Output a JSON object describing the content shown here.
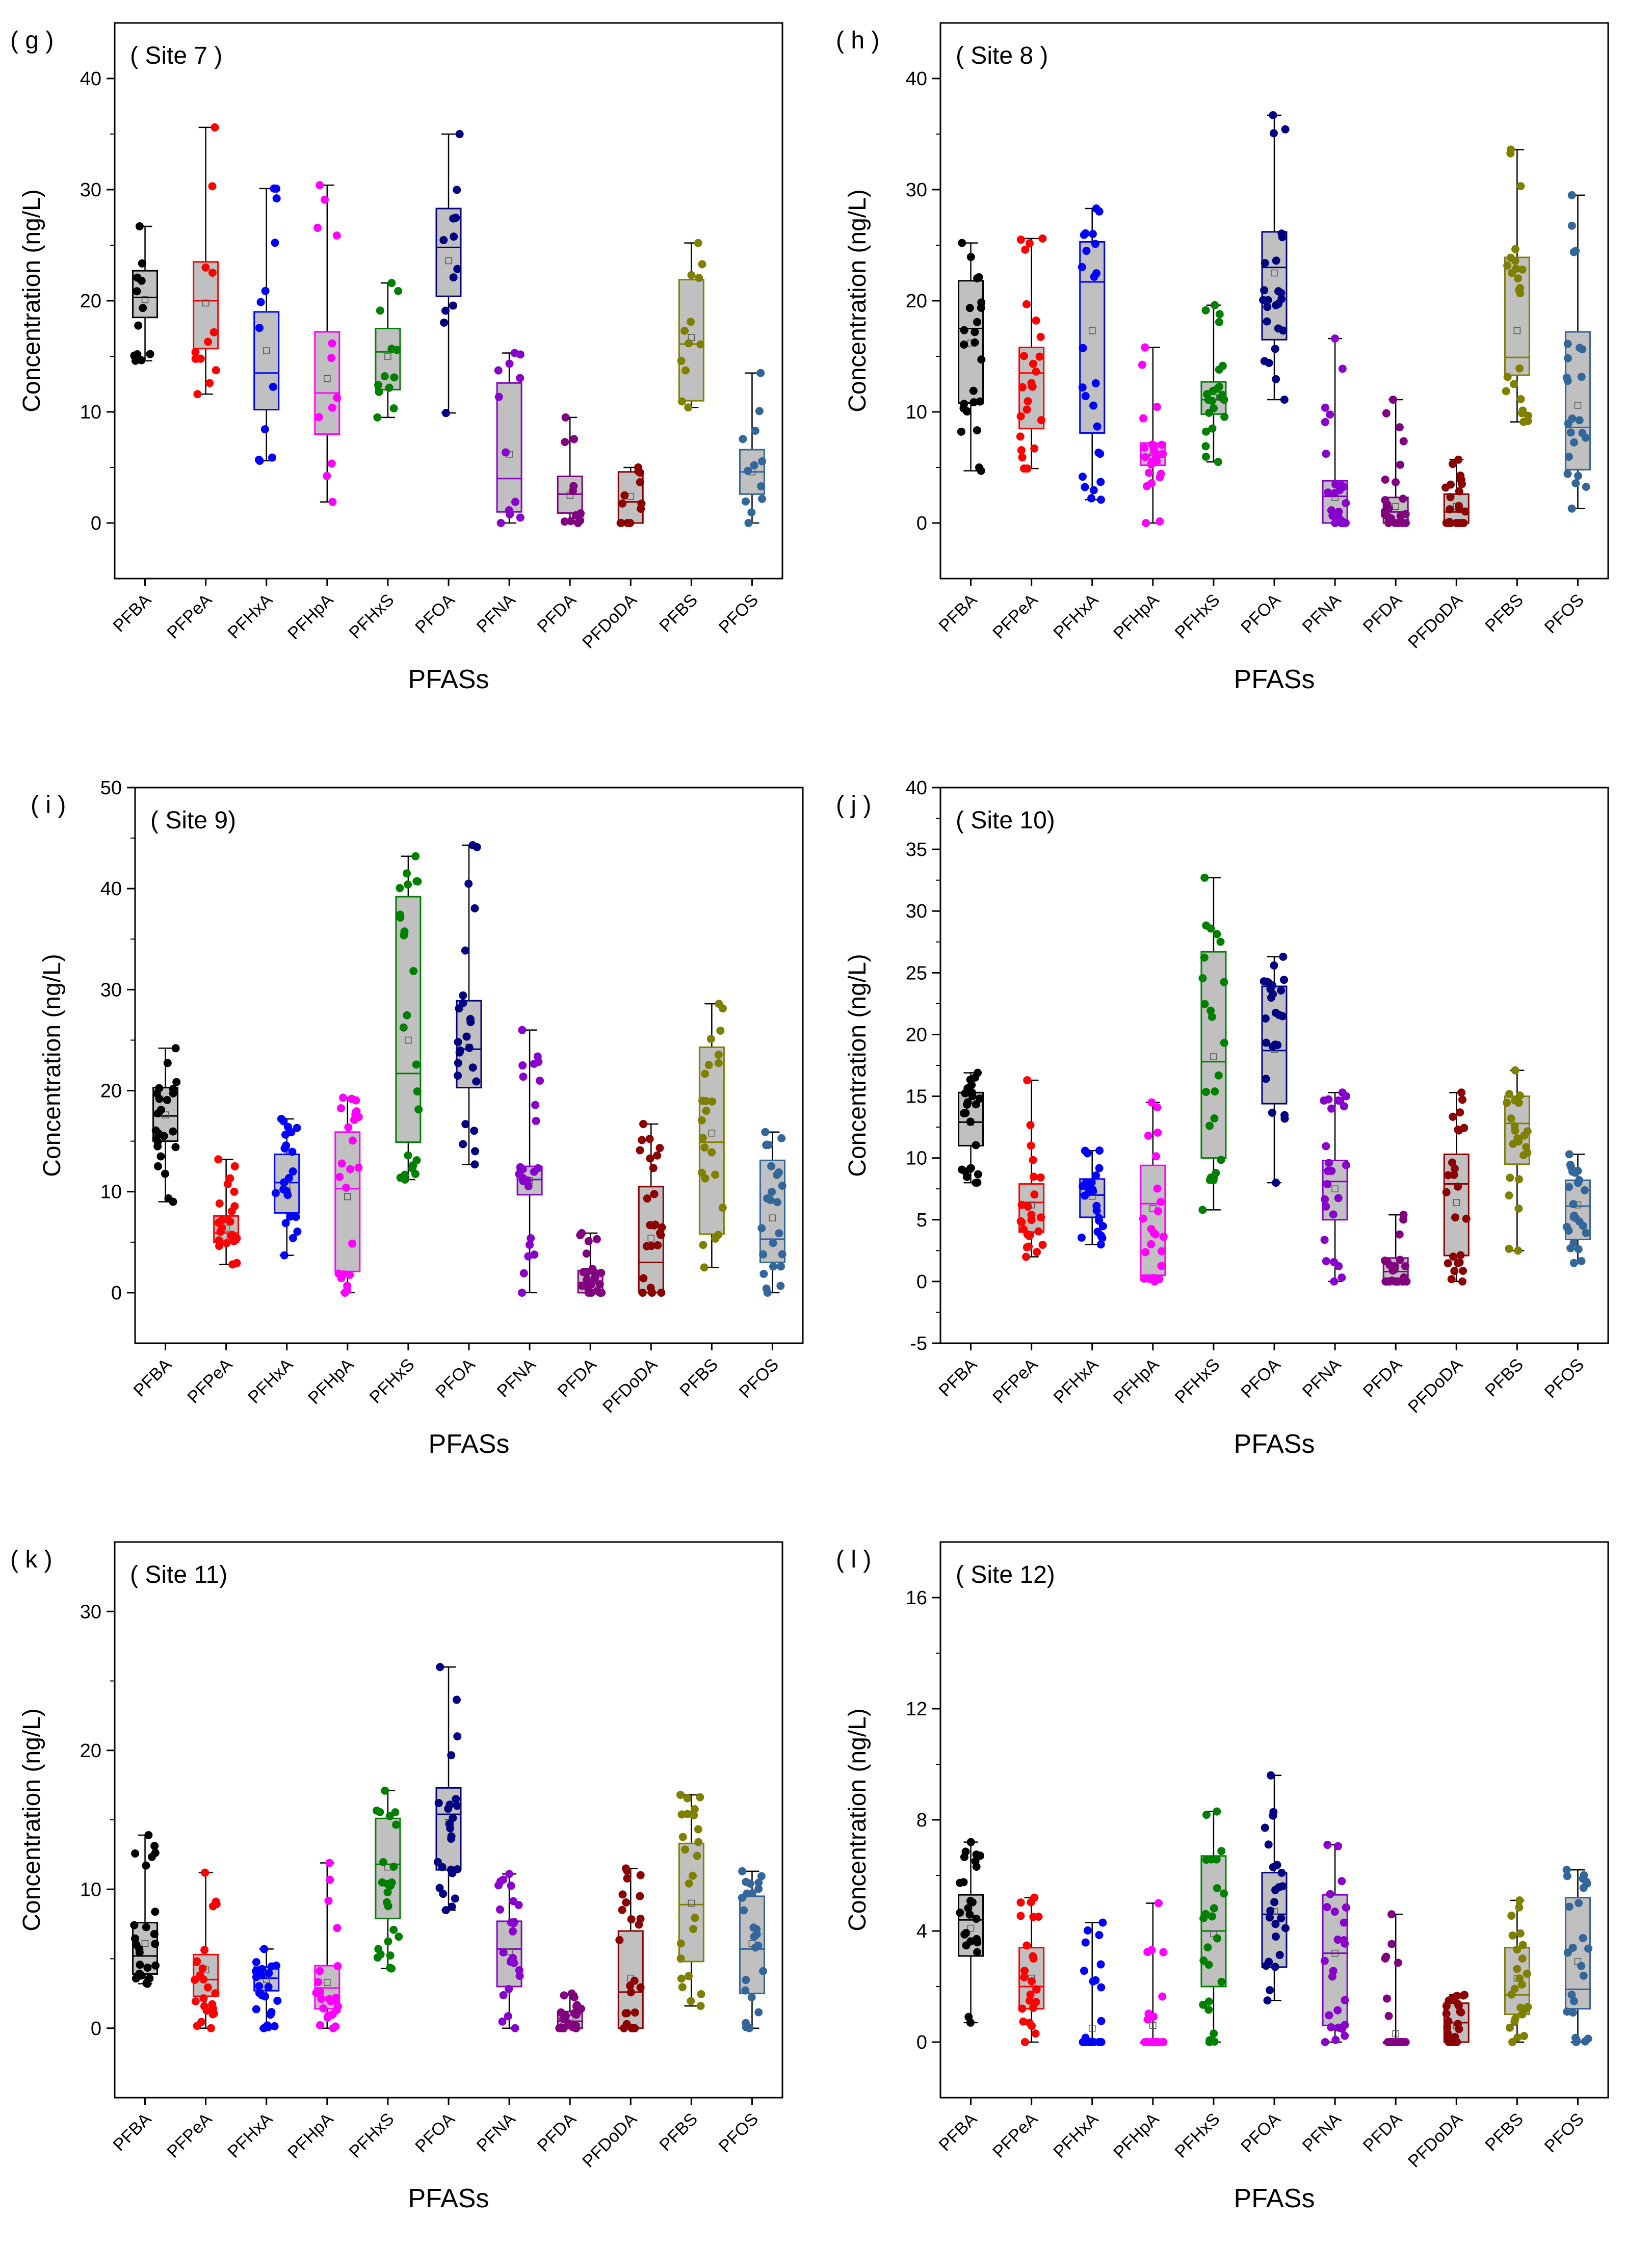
{
  "colors": {
    "PFBA": "#000000",
    "PFPeA": "#ff0000",
    "PFHxA": "#0000ff",
    "PFHpA": "#ff00ff",
    "PFHxS": "#008000",
    "PFOA": "#000080",
    "PFNA": "#8800cc",
    "PFDA": "#800080",
    "PFDoDA": "#8b0000",
    "PFBS": "#808000",
    "PFOS": "#336699",
    "box_fill": "#c0c0c0"
  },
  "chart_data": [
    {
      "type": "box",
      "panel_label": "( g )",
      "title": "( Site 7 )",
      "xlabel": "PFASs",
      "ylabel": "Concentration (ng/L)",
      "ylim": [
        -5,
        45
      ],
      "yticks": [
        0,
        10,
        20,
        30,
        40
      ],
      "yticklabels": [
        "0",
        "10",
        "20",
        "30",
        "40"
      ],
      "categories": [
        "PFBA",
        "PFPeA",
        "PFHxA",
        "PFHpA",
        "PFHxS",
        "PFOA",
        "PFNA",
        "PFDA",
        "PFDoDA",
        "PFBS",
        "PFOS"
      ],
      "boxes": [
        {
          "q1": 18.5,
          "median": 20.3,
          "q3": 22.7,
          "mean": 20.1,
          "wlo": 14.6,
          "whi": 26.7
        },
        {
          "q1": 15.7,
          "median": 20.0,
          "q3": 23.5,
          "mean": 19.8,
          "wlo": 11.6,
          "whi": 35.6
        },
        {
          "q1": 10.2,
          "median": 13.5,
          "q3": 19.0,
          "mean": 15.5,
          "wlo": 5.6,
          "whi": 30.1
        },
        {
          "q1": 8.0,
          "median": 11.7,
          "q3": 17.2,
          "mean": 13.0,
          "wlo": 1.9,
          "whi": 30.4
        },
        {
          "q1": 12.0,
          "median": 15.4,
          "q3": 17.5,
          "mean": 15.0,
          "wlo": 9.5,
          "whi": 21.6
        },
        {
          "q1": 20.4,
          "median": 24.8,
          "q3": 28.3,
          "mean": 23.6,
          "wlo": 9.9,
          "whi": 35.0
        },
        {
          "q1": 1.0,
          "median": 4.0,
          "q3": 12.6,
          "mean": 6.2,
          "wlo": 0.0,
          "whi": 15.3
        },
        {
          "q1": 0.9,
          "median": 2.6,
          "q3": 4.2,
          "mean": 2.5,
          "wlo": 0.0,
          "whi": 9.5
        },
        {
          "q1": 0.0,
          "median": 1.9,
          "q3": 4.6,
          "mean": 2.4,
          "wlo": 0.0,
          "whi": 5.0
        },
        {
          "q1": 11.0,
          "median": 16.1,
          "q3": 21.9,
          "mean": 16.7,
          "wlo": 10.4,
          "whi": 25.2
        },
        {
          "q1": 2.6,
          "median": 4.6,
          "q3": 6.6,
          "mean": 4.6,
          "wlo": 0.0,
          "whi": 13.5
        }
      ],
      "n_points": 12
    },
    {
      "type": "box",
      "panel_label": "( h )",
      "title": "( Site 8 )",
      "xlabel": "PFASs",
      "ylabel": "Concentration (ng/L)",
      "ylim": [
        -5,
        45
      ],
      "yticks": [
        0,
        10,
        20,
        30,
        40
      ],
      "yticklabels": [
        "0",
        "10",
        "20",
        "30",
        "40"
      ],
      "categories": [
        "PFBA",
        "PFPeA",
        "PFHxA",
        "PFHpA",
        "PFHxS",
        "PFOA",
        "PFNA",
        "PFDA",
        "PFDoDA",
        "PFBS",
        "PFOS"
      ],
      "boxes": [
        {
          "q1": 10.8,
          "median": 17.5,
          "q3": 21.8,
          "mean": 16.2,
          "wlo": 4.7,
          "whi": 25.2
        },
        {
          "q1": 8.5,
          "median": 13.5,
          "q3": 15.8,
          "mean": 12.4,
          "wlo": 4.9,
          "whi": 25.6
        },
        {
          "q1": 8.1,
          "median": 21.7,
          "q3": 25.3,
          "mean": 17.3,
          "wlo": 2.1,
          "whi": 28.3
        },
        {
          "q1": 5.2,
          "median": 6.1,
          "q3": 7.2,
          "mean": 6.0,
          "wlo": 0.0,
          "whi": 15.8
        },
        {
          "q1": 9.8,
          "median": 11.1,
          "q3": 12.7,
          "mean": 11.3,
          "wlo": 5.5,
          "whi": 19.6
        },
        {
          "q1": 16.5,
          "median": 23.0,
          "q3": 26.2,
          "mean": 22.5,
          "wlo": 11.1,
          "whi": 36.7
        },
        {
          "q1": 0.0,
          "median": 2.4,
          "q3": 3.8,
          "mean": 2.3,
          "wlo": 0.0,
          "whi": 16.6
        },
        {
          "q1": 0.0,
          "median": 1.0,
          "q3": 2.3,
          "mean": 1.5,
          "wlo": 0.0,
          "whi": 11.1
        },
        {
          "q1": 0.0,
          "median": 1.0,
          "q3": 2.6,
          "mean": 1.5,
          "wlo": 0.0,
          "whi": 5.7
        },
        {
          "q1": 13.3,
          "median": 14.9,
          "q3": 23.9,
          "mean": 17.3,
          "wlo": 9.1,
          "whi": 33.6
        },
        {
          "q1": 4.8,
          "median": 8.6,
          "q3": 17.2,
          "mean": 10.6,
          "wlo": 1.3,
          "whi": 29.5
        }
      ],
      "n_points": 24
    },
    {
      "type": "box",
      "panel_label": "( i )",
      "title": "( Site 9)",
      "xlabel": "PFASs",
      "ylabel": "Concentration (ng/L)",
      "ylim": [
        -5,
        50
      ],
      "yticks": [
        0,
        10,
        20,
        30,
        40,
        50
      ],
      "yticklabels": [
        "0",
        "10",
        "20",
        "30",
        "40",
        "50"
      ],
      "categories": [
        "PFBA",
        "PFPeA",
        "PFHxA",
        "PFHpA",
        "PFHxS",
        "PFOA",
        "PFNA",
        "PFDA",
        "PFDoDA",
        "PFBS",
        "PFOS"
      ],
      "boxes": [
        {
          "q1": 15.0,
          "median": 17.5,
          "q3": 20.3,
          "mean": 17.6,
          "wlo": 9.0,
          "whi": 24.2
        },
        {
          "q1": 5.0,
          "median": 5.9,
          "q3": 7.6,
          "mean": 6.4,
          "wlo": 2.8,
          "whi": 13.2
        },
        {
          "q1": 7.9,
          "median": 10.9,
          "q3": 13.7,
          "mean": 10.6,
          "wlo": 3.7,
          "whi": 17.2
        },
        {
          "q1": 2.1,
          "median": 10.3,
          "q3": 15.9,
          "mean": 9.5,
          "wlo": 0.0,
          "whi": 19.3
        },
        {
          "q1": 14.9,
          "median": 21.7,
          "q3": 39.2,
          "mean": 25.0,
          "wlo": 11.2,
          "whi": 43.2
        },
        {
          "q1": 20.3,
          "median": 24.1,
          "q3": 28.9,
          "mean": 24.3,
          "wlo": 12.7,
          "whi": 44.3
        },
        {
          "q1": 9.7,
          "median": 11.2,
          "q3": 12.5,
          "mean": 11.1,
          "wlo": 0.0,
          "whi": 26.0
        },
        {
          "q1": 0.0,
          "median": 1.0,
          "q3": 2.2,
          "mean": 1.3,
          "wlo": 0.0,
          "whi": 5.9
        },
        {
          "q1": 0.0,
          "median": 3.0,
          "q3": 10.5,
          "mean": 5.4,
          "wlo": 0.0,
          "whi": 16.7
        },
        {
          "q1": 5.8,
          "median": 14.9,
          "q3": 24.3,
          "mean": 15.8,
          "wlo": 2.5,
          "whi": 28.6
        },
        {
          "q1": 3.0,
          "median": 5.3,
          "q3": 13.1,
          "mean": 7.4,
          "wlo": 0.0,
          "whi": 15.9
        }
      ],
      "n_points": 24
    },
    {
      "type": "box",
      "panel_label": "( j )",
      "title": "( Site 10)",
      "xlabel": "PFASs",
      "ylabel": "Concentration (ng/L)",
      "ylim": [
        -5,
        40
      ],
      "yticks": [
        -5,
        0,
        5,
        10,
        15,
        20,
        25,
        30,
        35,
        40
      ],
      "yticklabels": [
        "-5",
        "0",
        "5",
        "10",
        "15",
        "20",
        "25",
        "30",
        "35",
        "40"
      ],
      "categories": [
        "PFBA",
        "PFPeA",
        "PFHxA",
        "PFHpA",
        "PFHxS",
        "PFOA",
        "PFNA",
        "PFDA",
        "PFDoDA",
        "PFBS",
        "PFOS"
      ],
      "boxes": [
        {
          "q1": 11.0,
          "median": 12.9,
          "q3": 15.3,
          "mean": 12.9,
          "wlo": 8.0,
          "whi": 16.9
        },
        {
          "q1": 4.0,
          "median": 6.4,
          "q3": 7.9,
          "mean": 6.2,
          "wlo": 2.0,
          "whi": 16.3
        },
        {
          "q1": 5.2,
          "median": 7.0,
          "q3": 8.3,
          "mean": 6.9,
          "wlo": 3.0,
          "whi": 10.6
        },
        {
          "q1": 0.5,
          "median": 6.3,
          "q3": 9.4,
          "mean": 5.9,
          "wlo": 0.0,
          "whi": 14.5
        },
        {
          "q1": 10.0,
          "median": 17.8,
          "q3": 26.7,
          "mean": 18.2,
          "wlo": 5.8,
          "whi": 32.7
        },
        {
          "q1": 14.4,
          "median": 18.7,
          "q3": 23.9,
          "mean": 18.8,
          "wlo": 8.0,
          "whi": 26.3
        },
        {
          "q1": 5.0,
          "median": 8.1,
          "q3": 9.8,
          "mean": 7.5,
          "wlo": 0.0,
          "whi": 15.3
        },
        {
          "q1": 0.0,
          "median": 0.8,
          "q3": 1.9,
          "mean": 1.2,
          "wlo": 0.0,
          "whi": 5.4
        },
        {
          "q1": 2.1,
          "median": 7.9,
          "q3": 10.3,
          "mean": 6.4,
          "wlo": 0.0,
          "whi": 15.3
        },
        {
          "q1": 9.5,
          "median": 12.8,
          "q3": 15.0,
          "mean": 11.5,
          "wlo": 2.5,
          "whi": 17.1
        },
        {
          "q1": 3.4,
          "median": 6.1,
          "q3": 8.2,
          "mean": 6.2,
          "wlo": 1.5,
          "whi": 10.3
        }
      ],
      "n_points": 24
    },
    {
      "type": "box",
      "panel_label": "( k )",
      "title": "( Site 11)",
      "xlabel": "PFASs",
      "ylabel": "Concentration (ng/L)",
      "ylim": [
        -5,
        35
      ],
      "yticks": [
        0,
        10,
        20,
        30
      ],
      "yticklabels": [
        "0",
        "10",
        "20",
        "30"
      ],
      "categories": [
        "PFBA",
        "PFPeA",
        "PFHxA",
        "PFHpA",
        "PFHxS",
        "PFOA",
        "PFNA",
        "PFDA",
        "PFDoDA",
        "PFBS",
        "PFOS"
      ],
      "boxes": [
        {
          "q1": 3.9,
          "median": 5.2,
          "q3": 7.6,
          "mean": 6.1,
          "wlo": 3.2,
          "whi": 13.9
        },
        {
          "q1": 2.3,
          "median": 3.5,
          "q3": 5.3,
          "mean": 4.2,
          "wlo": 0.0,
          "whi": 11.2
        },
        {
          "q1": 2.7,
          "median": 3.6,
          "q3": 4.4,
          "mean": 3.5,
          "wlo": 0.0,
          "whi": 5.7
        },
        {
          "q1": 1.4,
          "median": 2.9,
          "q3": 4.5,
          "mean": 3.3,
          "wlo": 0.0,
          "whi": 11.9
        },
        {
          "q1": 7.9,
          "median": 11.8,
          "q3": 15.1,
          "mean": 11.6,
          "wlo": 4.3,
          "whi": 17.1
        },
        {
          "q1": 11.4,
          "median": 15.4,
          "q3": 17.3,
          "mean": 14.8,
          "wlo": 8.5,
          "whi": 26.0
        },
        {
          "q1": 3.0,
          "median": 5.7,
          "q3": 7.7,
          "mean": 5.5,
          "wlo": 0.0,
          "whi": 11.1
        },
        {
          "q1": 0.0,
          "median": 0.5,
          "q3": 1.2,
          "mean": 0.7,
          "wlo": 0.0,
          "whi": 2.5
        },
        {
          "q1": 0.0,
          "median": 2.6,
          "q3": 7.0,
          "mean": 3.6,
          "wlo": 0.0,
          "whi": 11.5
        },
        {
          "q1": 4.8,
          "median": 8.9,
          "q3": 13.3,
          "mean": 9.0,
          "wlo": 1.6,
          "whi": 16.8
        },
        {
          "q1": 2.5,
          "median": 5.7,
          "q3": 9.5,
          "mean": 6.1,
          "wlo": 0.0,
          "whi": 11.3
        }
      ],
      "n_points": 24
    },
    {
      "type": "box",
      "panel_label": "( l )",
      "title": "( Site 12)",
      "xlabel": "PFASs",
      "ylabel": "Concentration (ng/L)",
      "ylim": [
        -2,
        18
      ],
      "yticks": [
        0,
        4,
        8,
        12,
        16
      ],
      "yticklabels": [
        "0",
        "4",
        "8",
        "12",
        "16"
      ],
      "categories": [
        "PFBA",
        "PFPeA",
        "PFHxA",
        "PFHpA",
        "PFHxS",
        "PFOA",
        "PFNA",
        "PFDA",
        "PFDoDA",
        "PFBS",
        "PFOS"
      ],
      "boxes": [
        {
          "q1": 3.1,
          "median": 4.4,
          "q3": 5.3,
          "mean": 4.1,
          "wlo": 0.7,
          "whi": 7.2
        },
        {
          "q1": 1.2,
          "median": 2.0,
          "q3": 3.4,
          "mean": 2.3,
          "wlo": 0.0,
          "whi": 5.2
        },
        {
          "q1": 0.0,
          "median": 0.0,
          "q3": 0.0,
          "mean": 0.5,
          "wlo": 0.0,
          "whi": 4.3
        },
        {
          "q1": 0.0,
          "median": 0.0,
          "q3": 0.0,
          "mean": 0.6,
          "wlo": 0.0,
          "whi": 5.0
        },
        {
          "q1": 2.0,
          "median": 4.0,
          "q3": 6.7,
          "mean": 3.9,
          "wlo": 0.0,
          "whi": 8.3
        },
        {
          "q1": 2.7,
          "median": 4.6,
          "q3": 6.1,
          "mean": 4.7,
          "wlo": 1.5,
          "whi": 9.6
        },
        {
          "q1": 0.6,
          "median": 3.2,
          "q3": 5.3,
          "mean": 3.2,
          "wlo": 0.0,
          "whi": 7.1
        },
        {
          "q1": 0.0,
          "median": 0.0,
          "q3": 0.0,
          "mean": 0.3,
          "wlo": 0.0,
          "whi": 4.6
        },
        {
          "q1": 0.0,
          "median": 0.7,
          "q3": 1.4,
          "mean": 0.6,
          "wlo": 0.0,
          "whi": 1.7
        },
        {
          "q1": 1.0,
          "median": 1.7,
          "q3": 3.4,
          "mean": 2.3,
          "wlo": 0.0,
          "whi": 5.1
        },
        {
          "q1": 1.2,
          "median": 1.9,
          "q3": 5.2,
          "mean": 2.9,
          "wlo": 0.0,
          "whi": 6.2
        }
      ],
      "n_points": 24
    }
  ]
}
